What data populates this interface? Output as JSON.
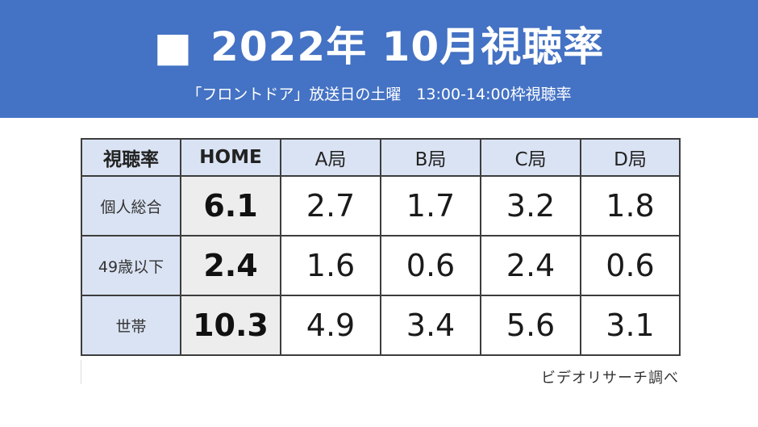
{
  "header": {
    "square": "■",
    "title": "2022年 10月視聴率",
    "subtitle": "「フロントドア」放送日の土曜　13:00-14:00枠視聴率"
  },
  "table": {
    "columns": [
      "視聴率",
      "HOME",
      "A局",
      "B局",
      "C局",
      "D局"
    ],
    "rows": [
      {
        "label": "個人総合",
        "home": "6.1",
        "values": [
          "2.7",
          "1.7",
          "3.2",
          "1.8"
        ]
      },
      {
        "label": "49歳以下",
        "home": "2.4",
        "values": [
          "1.6",
          "0.6",
          "2.4",
          "0.6"
        ]
      },
      {
        "label": "世帯",
        "home": "10.3",
        "values": [
          "4.9",
          "3.4",
          "5.6",
          "3.1"
        ]
      }
    ]
  },
  "source": "ビデオリサーチ調べ",
  "colors": {
    "header_bg": "#4472c4",
    "table_head_bg": "#dae3f3",
    "home_bg": "#ededed"
  }
}
